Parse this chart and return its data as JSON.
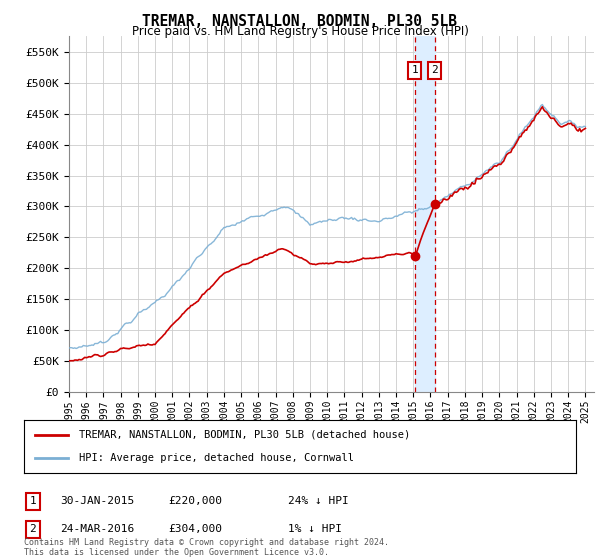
{
  "title": "TREMAR, NANSTALLON, BODMIN, PL30 5LB",
  "subtitle": "Price paid vs. HM Land Registry's House Price Index (HPI)",
  "ylabel_ticks": [
    "£0",
    "£50K",
    "£100K",
    "£150K",
    "£200K",
    "£250K",
    "£300K",
    "£350K",
    "£400K",
    "£450K",
    "£500K",
    "£550K"
  ],
  "ytick_values": [
    0,
    50000,
    100000,
    150000,
    200000,
    250000,
    300000,
    350000,
    400000,
    450000,
    500000,
    550000
  ],
  "xlim_left": 1995,
  "xlim_right": 2025.5,
  "ylim": [
    0,
    575000
  ],
  "red_line_color": "#cc0000",
  "blue_line_color": "#7bafd4",
  "marker1_date_x": 2015.08,
  "marker2_date_x": 2016.25,
  "marker1_y": 220000,
  "marker2_y": 304000,
  "vline_color": "#cc0000",
  "vshade_color": "#ddeeff",
  "legend_label1": "TREMAR, NANSTALLON, BODMIN, PL30 5LB (detached house)",
  "legend_label2": "HPI: Average price, detached house, Cornwall",
  "note1_label": "1",
  "note1_date": "30-JAN-2015",
  "note1_price": "£220,000",
  "note1_hpi": "24% ↓ HPI",
  "note2_label": "2",
  "note2_date": "24-MAR-2016",
  "note2_price": "£304,000",
  "note2_hpi": "1% ↓ HPI",
  "footer": "Contains HM Land Registry data © Crown copyright and database right 2024.\nThis data is licensed under the Open Government Licence v3.0.",
  "background_color": "#ffffff",
  "grid_color": "#cccccc"
}
